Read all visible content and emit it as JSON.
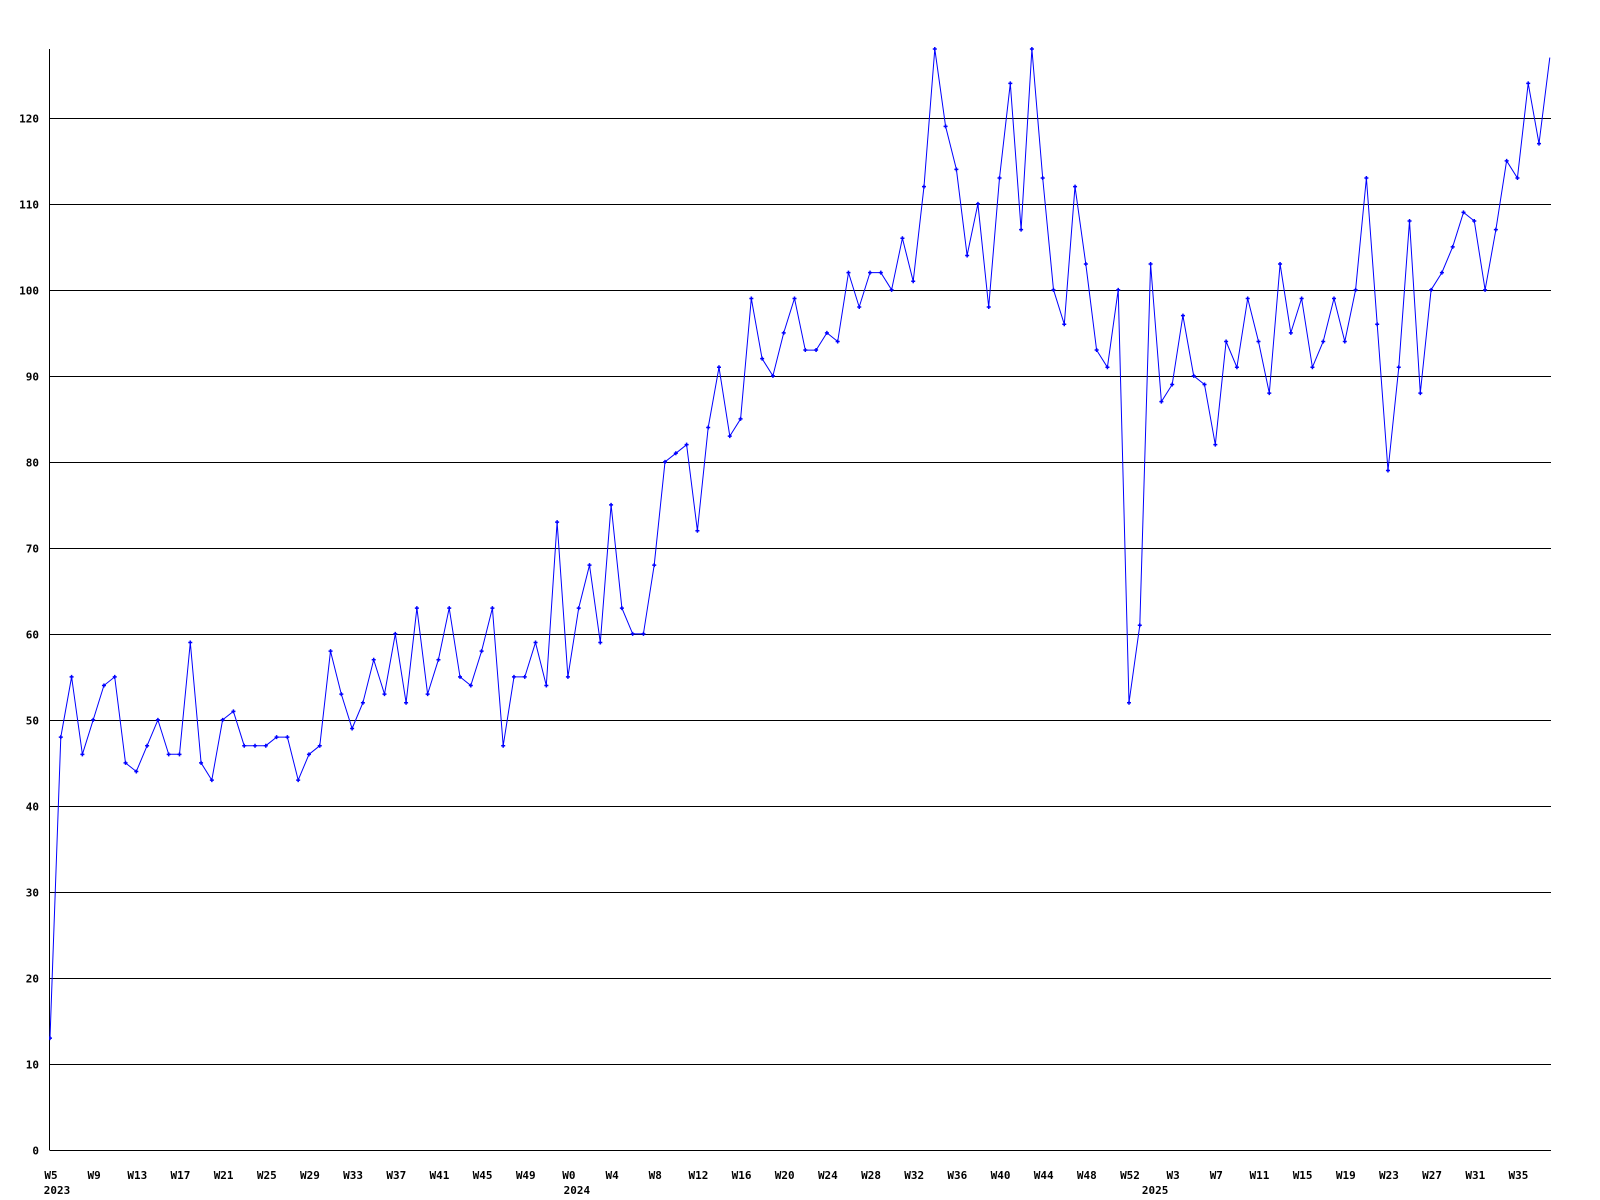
{
  "chart_data": {
    "type": "line",
    "title": "",
    "xlabel": "",
    "ylabel": "",
    "ylim": [
      0,
      128
    ],
    "yticks": [
      0,
      10,
      20,
      30,
      40,
      50,
      60,
      70,
      80,
      90,
      100,
      110,
      120
    ],
    "grid": "horizontal",
    "line_color": "#0000ff",
    "grid_color": "#000000",
    "x_tick_labels": [
      {
        "week": "2023-W5",
        "label": "W5",
        "year": "2023"
      },
      {
        "week": "2023-W9",
        "label": "W9"
      },
      {
        "week": "2023-W13",
        "label": "W13"
      },
      {
        "week": "2023-W17",
        "label": "W17"
      },
      {
        "week": "2023-W21",
        "label": "W21"
      },
      {
        "week": "2023-W25",
        "label": "W25"
      },
      {
        "week": "2023-W29",
        "label": "W29"
      },
      {
        "week": "2023-W33",
        "label": "W33"
      },
      {
        "week": "2023-W37",
        "label": "W37"
      },
      {
        "week": "2023-W41",
        "label": "W41"
      },
      {
        "week": "2023-W45",
        "label": "W45"
      },
      {
        "week": "2023-W49",
        "label": "W49"
      },
      {
        "week": "2024-W0",
        "label": "W0",
        "year": "2024"
      },
      {
        "week": "2024-W4",
        "label": "W4"
      },
      {
        "week": "2024-W8",
        "label": "W8"
      },
      {
        "week": "2024-W12",
        "label": "W12"
      },
      {
        "week": "2024-W16",
        "label": "W16"
      },
      {
        "week": "2024-W20",
        "label": "W20"
      },
      {
        "week": "2024-W24",
        "label": "W24"
      },
      {
        "week": "2024-W28",
        "label": "W28"
      },
      {
        "week": "2024-W32",
        "label": "W32"
      },
      {
        "week": "2024-W36",
        "label": "W36"
      },
      {
        "week": "2024-W40",
        "label": "W40"
      },
      {
        "week": "2024-W44",
        "label": "W44"
      },
      {
        "week": "2024-W48",
        "label": "W48"
      },
      {
        "week": "2024-W52",
        "label": "W52"
      },
      {
        "week": "2025-W3",
        "label": "W3",
        "year": "2025"
      },
      {
        "week": "2025-W7",
        "label": "W7"
      },
      {
        "week": "2025-W11",
        "label": "W11"
      },
      {
        "week": "2025-W15",
        "label": "W15"
      },
      {
        "week": "2025-W19",
        "label": "W19"
      },
      {
        "week": "2025-W23",
        "label": "W23"
      },
      {
        "week": "2025-W27",
        "label": "W27"
      },
      {
        "week": "2025-W31",
        "label": "W31"
      },
      {
        "week": "2025-W35",
        "label": "W35"
      }
    ],
    "x": [
      "2023-W5",
      "2023-W6",
      "2023-W7",
      "2023-W8",
      "2023-W9",
      "2023-W10",
      "2023-W11",
      "2023-W12",
      "2023-W13",
      "2023-W14",
      "2023-W15",
      "2023-W16",
      "2023-W17",
      "2023-W18",
      "2023-W19",
      "2023-W20",
      "2023-W21",
      "2023-W22",
      "2023-W23",
      "2023-W24",
      "2023-W25",
      "2023-W26",
      "2023-W27",
      "2023-W28",
      "2023-W29",
      "2023-W30",
      "2023-W31",
      "2023-W32",
      "2023-W33",
      "2023-W34",
      "2023-W35",
      "2023-W36",
      "2023-W37",
      "2023-W38",
      "2023-W39",
      "2023-W40",
      "2023-W41",
      "2023-W42",
      "2023-W43",
      "2023-W44",
      "2023-W45",
      "2023-W46",
      "2023-W47",
      "2023-W48",
      "2023-W49",
      "2023-W50",
      "2023-W51",
      "2023-W52",
      "2024-W0",
      "2024-W1",
      "2024-W2",
      "2024-W3",
      "2024-W4",
      "2024-W5",
      "2024-W6",
      "2024-W7",
      "2024-W8",
      "2024-W9",
      "2024-W10",
      "2024-W11",
      "2024-W12",
      "2024-W13",
      "2024-W14",
      "2024-W15",
      "2024-W16",
      "2024-W17",
      "2024-W18",
      "2024-W19",
      "2024-W20",
      "2024-W21",
      "2024-W22",
      "2024-W23",
      "2024-W24",
      "2024-W25",
      "2024-W26",
      "2024-W27",
      "2024-W28",
      "2024-W29",
      "2024-W30",
      "2024-W31",
      "2024-W32",
      "2024-W33",
      "2024-W34",
      "2024-W35",
      "2024-W36",
      "2024-W37",
      "2024-W38",
      "2024-W39",
      "2024-W40",
      "2024-W41",
      "2024-W42",
      "2024-W43",
      "2024-W44",
      "2024-W45",
      "2024-W46",
      "2024-W47",
      "2024-W48",
      "2024-W49",
      "2024-W50",
      "2024-W51",
      "2024-W52",
      "2025-W0",
      "2025-W1",
      "2025-W2",
      "2025-W3",
      "2025-W4",
      "2025-W5",
      "2025-W6",
      "2025-W7",
      "2025-W8",
      "2025-W9",
      "2025-W10",
      "2025-W11",
      "2025-W12",
      "2025-W13",
      "2025-W14",
      "2025-W15",
      "2025-W16",
      "2025-W17",
      "2025-W18",
      "2025-W19",
      "2025-W20",
      "2025-W21",
      "2025-W22",
      "2025-W23",
      "2025-W24",
      "2025-W25",
      "2025-W26",
      "2025-W27",
      "2025-W28",
      "2025-W29",
      "2025-W30",
      "2025-W31",
      "2025-W32",
      "2025-W33",
      "2025-W34",
      "2025-W35",
      "2025-W36",
      "2025-W37",
      "2025-W38"
    ],
    "values": [
      13,
      48,
      55,
      46,
      50,
      54,
      55,
      45,
      44,
      47,
      50,
      46,
      46,
      59,
      45,
      43,
      50,
      51,
      47,
      47,
      47,
      48,
      48,
      43,
      46,
      47,
      58,
      53,
      49,
      52,
      57,
      53,
      60,
      52,
      63,
      53,
      57,
      63,
      55,
      54,
      58,
      63,
      47,
      55,
      55,
      59,
      54,
      73,
      55,
      63,
      68,
      59,
      75,
      63,
      60,
      60,
      68,
      80,
      81,
      82,
      72,
      84,
      91,
      83,
      85,
      99,
      92,
      90,
      95,
      99,
      93,
      93,
      95,
      94,
      102,
      98,
      102,
      102,
      100,
      106,
      101,
      112,
      128,
      119,
      114,
      104,
      110,
      98,
      113,
      124,
      107,
      128,
      113,
      100,
      96,
      112,
      103,
      93,
      91,
      100,
      52,
      61,
      103,
      87,
      89,
      97,
      90,
      89,
      82,
      94,
      91,
      99,
      94,
      88,
      103,
      95,
      99,
      91,
      94,
      99,
      94,
      100,
      113,
      96,
      79,
      91,
      108,
      88,
      100,
      102,
      105,
      109,
      108,
      100,
      107,
      115,
      113,
      124,
      117,
      127
    ]
  }
}
